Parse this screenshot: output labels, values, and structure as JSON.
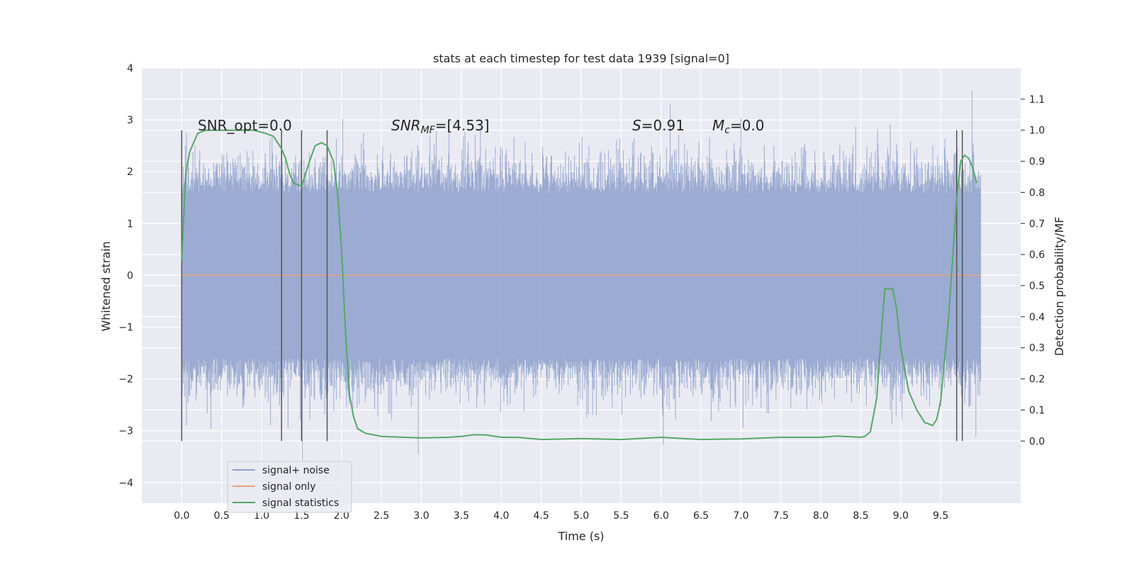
{
  "chart_data": {
    "type": "line",
    "title": "stats at each timestep for test data 1939 [signal=0]",
    "xlabel": "Time (s)",
    "ylabel": "Whitened strain",
    "y2label": "Detection probability/MF",
    "xlim": [
      -0.5,
      10.5
    ],
    "ylim": [
      -4.4,
      4.0
    ],
    "y2lim": [
      -0.2,
      1.2
    ],
    "x_ticks": [
      0.0,
      0.5,
      1.0,
      1.5,
      2.0,
      2.5,
      3.0,
      3.5,
      4.0,
      4.5,
      5.0,
      5.5,
      6.0,
      6.5,
      7.0,
      7.5,
      8.0,
      8.5,
      9.0,
      9.5
    ],
    "x_tick_labels": [
      "0.0",
      "0.5",
      "1.0",
      "1.5",
      "2.0",
      "2.5",
      "3.0",
      "3.5",
      "4.0",
      "4.5",
      "5.0",
      "5.5",
      "6.0",
      "6.5",
      "7.0",
      "7.5",
      "8.0",
      "8.5",
      "9.0",
      "9.5"
    ],
    "y_ticks": [
      -4,
      -3,
      -2,
      -1,
      0,
      1,
      2,
      3,
      4
    ],
    "y_tick_labels": [
      "−4",
      "−3",
      "−2",
      "−1",
      "0",
      "1",
      "2",
      "3",
      "4"
    ],
    "y2_ticks": [
      0.0,
      0.1,
      0.2,
      0.3,
      0.4,
      0.5,
      0.6,
      0.7,
      0.8,
      0.9,
      1.0,
      1.1
    ],
    "y2_tick_labels": [
      "0.0",
      "0.1",
      "0.2",
      "0.3",
      "0.4",
      "0.5",
      "0.6",
      "0.7",
      "0.8",
      "0.9",
      "1.0",
      "1.1"
    ],
    "grid": true,
    "legend_position": "lower-left",
    "legend": [
      {
        "label": "signal+ noise",
        "color": "#8da0cb"
      },
      {
        "label": "signal only",
        "color": "#e8a27c"
      },
      {
        "label": "signal statistics",
        "color": "#55a868"
      }
    ],
    "annotations": {
      "snr_opt": "SNR_opt=0.0",
      "snr_mf_sym": "SNR",
      "snr_mf_sub": "MF",
      "snr_mf_val": "=[4.53]",
      "s_sym": "S",
      "s_val": "=0.91",
      "mc_sym": "M",
      "mc_sub": "c",
      "mc_val": "=0.0"
    },
    "noise": {
      "x_range": [
        0.0,
        10.0
      ],
      "typical_band": [
        -1.6,
        1.6
      ],
      "extreme_range": [
        -4.05,
        3.65
      ],
      "color": "#8da0cb"
    },
    "signal_only": {
      "x_range": [
        0.0,
        10.0
      ],
      "value": 0.0,
      "color": "#e8a27c"
    },
    "signal_statistics": {
      "color": "#55a868",
      "x": [
        0.0,
        0.05,
        0.1,
        0.2,
        0.3,
        0.5,
        0.7,
        0.9,
        1.05,
        1.15,
        1.25,
        1.3,
        1.35,
        1.4,
        1.5,
        1.6,
        1.67,
        1.75,
        1.82,
        1.9,
        1.95,
        2.0,
        2.05,
        2.1,
        2.15,
        2.2,
        2.3,
        2.4,
        2.5,
        3.0,
        3.35,
        3.5,
        3.65,
        3.8,
        4.0,
        4.2,
        4.5,
        5.0,
        5.5,
        6.0,
        6.5,
        7.0,
        7.5,
        8.0,
        8.2,
        8.5,
        8.55,
        8.62,
        8.7,
        8.75,
        8.8,
        8.85,
        8.9,
        8.95,
        9.0,
        9.1,
        9.2,
        9.3,
        9.35,
        9.4,
        9.45,
        9.5,
        9.6,
        9.7,
        9.75,
        9.8,
        9.85,
        9.9,
        9.95
      ],
      "y": [
        0.58,
        0.86,
        0.93,
        0.99,
        1.0,
        1.0,
        1.0,
        1.0,
        0.99,
        0.98,
        0.94,
        0.91,
        0.86,
        0.83,
        0.82,
        0.9,
        0.95,
        0.96,
        0.95,
        0.9,
        0.8,
        0.62,
        0.35,
        0.15,
        0.08,
        0.04,
        0.025,
        0.02,
        0.015,
        0.01,
        0.012,
        0.015,
        0.02,
        0.02,
        0.012,
        0.012,
        0.005,
        0.008,
        0.005,
        0.012,
        0.005,
        0.007,
        0.012,
        0.012,
        0.016,
        0.012,
        0.015,
        0.03,
        0.14,
        0.32,
        0.49,
        0.49,
        0.49,
        0.42,
        0.3,
        0.16,
        0.1,
        0.06,
        0.055,
        0.05,
        0.07,
        0.13,
        0.4,
        0.78,
        0.9,
        0.92,
        0.91,
        0.88,
        0.83
      ]
    },
    "vertical_markers": [
      {
        "x": 0.0,
        "y_top": 2.8,
        "y_bottom": -3.2
      },
      {
        "x": 1.25,
        "y_top": 2.8,
        "y_bottom": -3.2
      },
      {
        "x": 1.5,
        "y_top": 2.8,
        "y_bottom": -3.2
      },
      {
        "x": 1.82,
        "y_top": 2.8,
        "y_bottom": -3.2
      },
      {
        "x": 9.7,
        "y_top": 2.8,
        "y_bottom": -3.2
      },
      {
        "x": 9.77,
        "y_top": 2.8,
        "y_bottom": -3.2
      }
    ]
  }
}
